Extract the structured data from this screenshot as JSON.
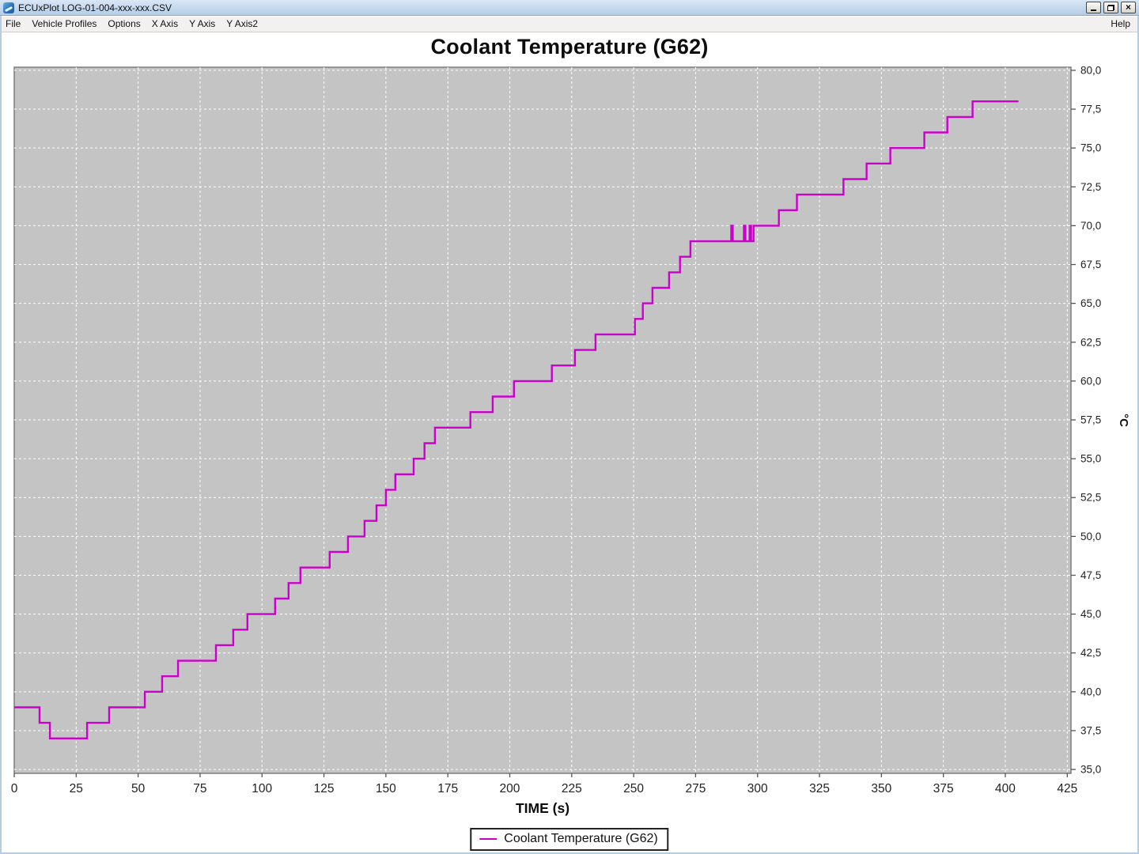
{
  "window": {
    "title": "ECUxPlot LOG-01-004-xxx-xxx.CSV",
    "buttons": [
      "minimize",
      "restore",
      "close"
    ]
  },
  "menu": {
    "items": [
      "File",
      "Vehicle Profiles",
      "Options",
      "X Axis",
      "Y Axis",
      "Y Axis2"
    ],
    "right_item": "Help"
  },
  "chart_data": {
    "type": "line",
    "step": true,
    "title": "Coolant Temperature (G62)",
    "xlabel": "TIME (s)",
    "ylabel": "°C",
    "xlim": [
      0,
      426.5
    ],
    "ylim": [
      34.75,
      80.2
    ],
    "grid": true,
    "legend_position": "bottom",
    "colors": {
      "line": "#cc00cc",
      "plot_bg": "#c4c4c4",
      "grid": "#ffffff",
      "plot_border": "#7d7d7d",
      "tick": "#555555",
      "tick_label": "#222222"
    },
    "x_ticks": [
      {
        "v": 0,
        "label": "0"
      },
      {
        "v": 25,
        "label": "25"
      },
      {
        "v": 50,
        "label": "50"
      },
      {
        "v": 75,
        "label": "75"
      },
      {
        "v": 100,
        "label": "100"
      },
      {
        "v": 125,
        "label": "125"
      },
      {
        "v": 150,
        "label": "150"
      },
      {
        "v": 175,
        "label": "175"
      },
      {
        "v": 200,
        "label": "200"
      },
      {
        "v": 225,
        "label": "225"
      },
      {
        "v": 250,
        "label": "250"
      },
      {
        "v": 275,
        "label": "275"
      },
      {
        "v": 300,
        "label": "300"
      },
      {
        "v": 325,
        "label": "325"
      },
      {
        "v": 350,
        "label": "350"
      },
      {
        "v": 375,
        "label": "375"
      },
      {
        "v": 400,
        "label": "400"
      },
      {
        "v": 425,
        "label": "425"
      }
    ],
    "y_ticks": [
      {
        "v": 35.0,
        "label": "35,0"
      },
      {
        "v": 37.5,
        "label": "37,5"
      },
      {
        "v": 40.0,
        "label": "40,0"
      },
      {
        "v": 42.5,
        "label": "42,5"
      },
      {
        "v": 45.0,
        "label": "45,0"
      },
      {
        "v": 47.5,
        "label": "47,5"
      },
      {
        "v": 50.0,
        "label": "50,0"
      },
      {
        "v": 52.5,
        "label": "52,5"
      },
      {
        "v": 55.0,
        "label": "55,0"
      },
      {
        "v": 57.5,
        "label": "57,5"
      },
      {
        "v": 60.0,
        "label": "60,0"
      },
      {
        "v": 62.5,
        "label": "62,5"
      },
      {
        "v": 65.0,
        "label": "65,0"
      },
      {
        "v": 67.5,
        "label": "67,5"
      },
      {
        "v": 70.0,
        "label": "70,0"
      },
      {
        "v": 72.5,
        "label": "72,5"
      },
      {
        "v": 75.0,
        "label": "75,0"
      },
      {
        "v": 77.5,
        "label": "77,5"
      },
      {
        "v": 80.0,
        "label": "80,0"
      }
    ],
    "series": [
      {
        "name": "Coolant Temperature (G62)",
        "points": [
          [
            0,
            39
          ],
          [
            10.2,
            38
          ],
          [
            14.4,
            37
          ],
          [
            29.4,
            38
          ],
          [
            38.3,
            39
          ],
          [
            52.7,
            40
          ],
          [
            59.7,
            41
          ],
          [
            66.1,
            42
          ],
          [
            81.4,
            43
          ],
          [
            88.4,
            44
          ],
          [
            94.1,
            45
          ],
          [
            105.3,
            46
          ],
          [
            110.7,
            47
          ],
          [
            115.5,
            48
          ],
          [
            127.3,
            49
          ],
          [
            134.7,
            50
          ],
          [
            141.4,
            51
          ],
          [
            146.2,
            52
          ],
          [
            150.0,
            53
          ],
          [
            153.8,
            54
          ],
          [
            161.2,
            55
          ],
          [
            165.6,
            56
          ],
          [
            169.8,
            57
          ],
          [
            184.1,
            58
          ],
          [
            193.1,
            59
          ],
          [
            201.7,
            60
          ],
          [
            217.0,
            61
          ],
          [
            226.3,
            62
          ],
          [
            234.6,
            63
          ],
          [
            250.5,
            64
          ],
          [
            253.7,
            65
          ],
          [
            257.6,
            66
          ],
          [
            264.3,
            67
          ],
          [
            268.7,
            68
          ],
          [
            272.9,
            69
          ],
          [
            289.4,
            70
          ],
          [
            290.0,
            69
          ],
          [
            294.5,
            70
          ],
          [
            295.1,
            69
          ],
          [
            296.8,
            70
          ],
          [
            297.4,
            69
          ],
          [
            298.4,
            70
          ],
          [
            308.6,
            71
          ],
          [
            315.9,
            72
          ],
          [
            334.7,
            73
          ],
          [
            344.0,
            74
          ],
          [
            353.6,
            75
          ],
          [
            367.3,
            76
          ],
          [
            376.6,
            77
          ],
          [
            386.8,
            78
          ],
          [
            405.3,
            78
          ]
        ]
      }
    ]
  }
}
